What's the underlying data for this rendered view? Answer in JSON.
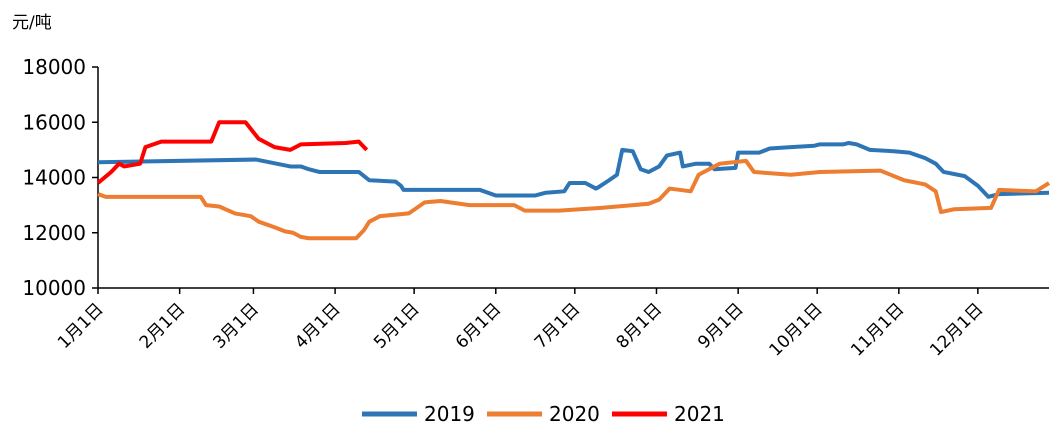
{
  "chart_data": {
    "type": "line",
    "y_label": "元/吨",
    "xlim": [
      0,
      361
    ],
    "xticks": [
      {
        "value": 0,
        "label": "1月1日"
      },
      {
        "value": 31,
        "label": "2月1日"
      },
      {
        "value": 59,
        "label": "3月1日"
      },
      {
        "value": 90,
        "label": "4月1日"
      },
      {
        "value": 120,
        "label": "5月1日"
      },
      {
        "value": 151,
        "label": "6月1日"
      },
      {
        "value": 181,
        "label": "7月1日"
      },
      {
        "value": 212,
        "label": "8月1日"
      },
      {
        "value": 243,
        "label": "9月1日"
      },
      {
        "value": 273,
        "label": "10月1日"
      },
      {
        "value": 304,
        "label": "11月1日"
      },
      {
        "value": 334,
        "label": "12月1日"
      }
    ],
    "ylim": [
      10000,
      18000
    ],
    "yticks": [
      10000,
      12000,
      14000,
      16000,
      18000
    ],
    "legend": "bottom",
    "series": [
      {
        "name": "2019",
        "color": "#2e75b6",
        "x": [
          0,
          60,
          73,
          77,
          80,
          84,
          99,
          103,
          113,
          115,
          116,
          145,
          151,
          166,
          170,
          177,
          179,
          185,
          189,
          190,
          194,
          197,
          199,
          203,
          206,
          209,
          213,
          216,
          221,
          222,
          227,
          232,
          234,
          242,
          243,
          251,
          255,
          263,
          272,
          274,
          283,
          285,
          288,
          293,
          302,
          308,
          314,
          318,
          321,
          329,
          334,
          338,
          342,
          361
        ],
        "values": [
          14550,
          14650,
          14400,
          14400,
          14300,
          14200,
          14200,
          13900,
          13850,
          13700,
          13550,
          13550,
          13350,
          13350,
          13450,
          13500,
          13800,
          13800,
          13600,
          13650,
          13900,
          14100,
          15000,
          14950,
          14300,
          14200,
          14400,
          14800,
          14900,
          14400,
          14500,
          14500,
          14300,
          14350,
          14900,
          14900,
          15050,
          15100,
          15150,
          15200,
          15200,
          15250,
          15200,
          15000,
          14950,
          14900,
          14700,
          14500,
          14200,
          14050,
          13700,
          13300,
          13400,
          13450
        ]
      },
      {
        "name": "2020",
        "color": "#ed7d31",
        "x": [
          0,
          3,
          39,
          41,
          46,
          52,
          58,
          61,
          67,
          71,
          74,
          77,
          80,
          98,
          101,
          103,
          107,
          118,
          124,
          130,
          141,
          158,
          162,
          175,
          191,
          209,
          213,
          217,
          225,
          228,
          236,
          246,
          249,
          263,
          274,
          297,
          306,
          314,
          318,
          320,
          325,
          339,
          342,
          356,
          361
        ],
        "values": [
          13400,
          13300,
          13300,
          13000,
          12950,
          12700,
          12600,
          12400,
          12200,
          12050,
          12000,
          11850,
          11800,
          11800,
          12100,
          12400,
          12600,
          12700,
          13100,
          13150,
          13000,
          13000,
          12800,
          12800,
          12900,
          13050,
          13200,
          13600,
          13500,
          14100,
          14500,
          14600,
          14200,
          14100,
          14200,
          14250,
          13900,
          13750,
          13500,
          12750,
          12850,
          12900,
          13550,
          13500,
          13800
        ]
      },
      {
        "name": "2021",
        "color": "#ff0000",
        "x": [
          0,
          5,
          8,
          10,
          16,
          18,
          24,
          43,
          46,
          56,
          61,
          67,
          73,
          77,
          94,
          99,
          102
        ],
        "values": [
          13800,
          14200,
          14500,
          14400,
          14500,
          15100,
          15300,
          15300,
          16000,
          16000,
          15400,
          15100,
          15000,
          15200,
          15250,
          15300,
          15000
        ]
      }
    ]
  }
}
